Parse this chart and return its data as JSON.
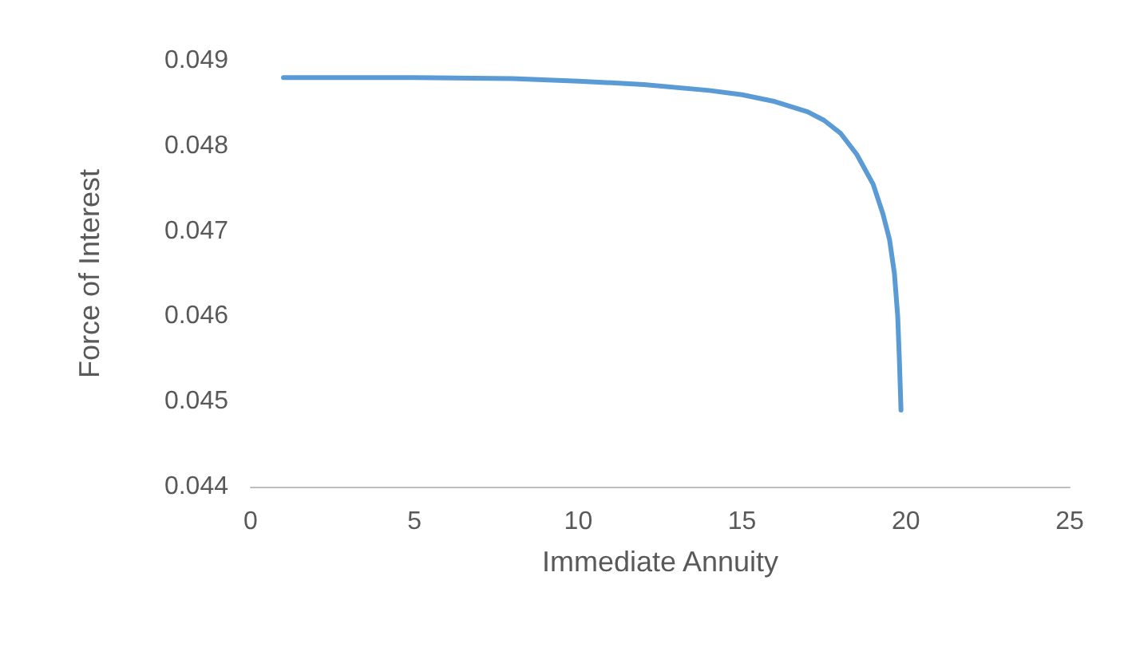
{
  "chart_data": {
    "type": "line",
    "xlabel": "Immediate Annuity",
    "ylabel": "Force of Interest",
    "x": [
      1,
      3,
      5,
      8,
      10,
      12,
      14,
      15,
      16,
      17,
      17.5,
      18,
      18.5,
      19,
      19.3,
      19.5,
      19.65,
      19.75,
      19.8,
      19.85
    ],
    "series": [
      {
        "color": "#5b9bd5",
        "values": [
          0.0488,
          0.0488,
          0.0488,
          0.04879,
          0.04876,
          0.04872,
          0.04865,
          0.0486,
          0.04852,
          0.0484,
          0.0483,
          0.04815,
          0.0479,
          0.04755,
          0.0472,
          0.0469,
          0.0465,
          0.046,
          0.0455,
          0.0449
        ]
      }
    ],
    "xlim": [
      0,
      25
    ],
    "xticks": [
      0,
      5,
      10,
      15,
      20,
      25
    ],
    "ylim": [
      0.044,
      0.049
    ],
    "yticks": [
      0.044,
      0.045,
      0.046,
      0.047,
      0.048,
      0.049
    ],
    "grid": false,
    "marker": "none",
    "line_style": "solid"
  }
}
